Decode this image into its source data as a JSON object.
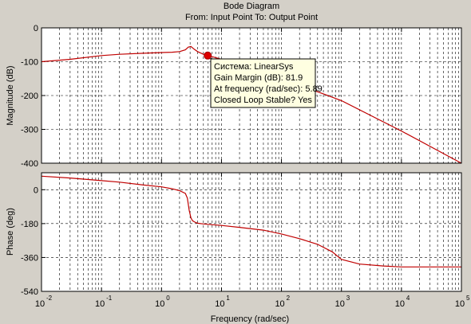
{
  "chart_data": {
    "type": "line",
    "title": "Bode Diagram",
    "subtitle": "From: Input Point  To: Output Point",
    "xlabel": "Frequency  (rad/sec)",
    "xscale": "log",
    "xlim": [
      0.01,
      100000
    ],
    "x_ticks": [
      0.01,
      0.1,
      1,
      10,
      100,
      1000,
      10000,
      100000
    ],
    "x_tick_labels": [
      {
        "base": "10",
        "exp": "-2"
      },
      {
        "base": "10",
        "exp": "-1"
      },
      {
        "base": "10",
        "exp": "0"
      },
      {
        "base": "10",
        "exp": "1"
      },
      {
        "base": "10",
        "exp": "2"
      },
      {
        "base": "10",
        "exp": "3"
      },
      {
        "base": "10",
        "exp": "4"
      },
      {
        "base": "10",
        "exp": "5"
      }
    ],
    "grid": true,
    "line_color": "#c00000",
    "panels": [
      {
        "name": "magnitude",
        "ylabel": "Magnitude (dB)",
        "ylim": [
          -400,
          0
        ],
        "y_ticks": [
          0,
          -100,
          -200,
          -300,
          -400
        ],
        "y_tick_labels": [
          "0",
          "-100",
          "-200",
          "-300",
          "-400"
        ],
        "x": [
          0.01,
          0.03,
          0.1,
          0.2,
          0.5,
          1,
          1.5,
          2,
          2.5,
          2.8,
          3.1,
          3.5,
          4,
          5,
          6,
          8,
          10,
          20,
          50,
          100,
          200,
          500,
          1000,
          10000,
          100000
        ],
        "y": [
          -100,
          -93,
          -82,
          -78,
          -75,
          -73,
          -72,
          -70,
          -65,
          -57,
          -55,
          -63,
          -70,
          -78,
          -82,
          -88,
          -93,
          -110,
          -135,
          -155,
          -170,
          -195,
          -215,
          -305,
          -400
        ]
      },
      {
        "name": "phase",
        "ylabel": "Phase (deg)",
        "ylim": [
          -540,
          90
        ],
        "y_ticks": [
          0,
          -180,
          -360,
          -540
        ],
        "y_tick_labels": [
          "0",
          "-180",
          "-360",
          "-540"
        ],
        "x": [
          0.01,
          0.03,
          0.1,
          0.2,
          0.5,
          1,
          1.5,
          2,
          2.5,
          2.7,
          2.9,
          3.1,
          3.3,
          3.6,
          4,
          5,
          10,
          20,
          50,
          100,
          200,
          400,
          700,
          1000,
          2000,
          5000,
          10000,
          100000
        ],
        "y": [
          72,
          62,
          48,
          40,
          25,
          15,
          5,
          -5,
          -20,
          -45,
          -110,
          -150,
          -165,
          -172,
          -178,
          -182,
          -190,
          -200,
          -215,
          -235,
          -260,
          -290,
          -330,
          -370,
          -395,
          -405,
          -410,
          -410
        ]
      }
    ],
    "datatip": {
      "x": 5.89,
      "y": -81.9,
      "marker_color": "#dd0000",
      "lines": [
        "Система: LinearSys",
        "Gain Margin (dB): 81.9",
        "At frequency (rad/sec): 5.89",
        "Closed Loop Stable? Yes"
      ]
    }
  }
}
